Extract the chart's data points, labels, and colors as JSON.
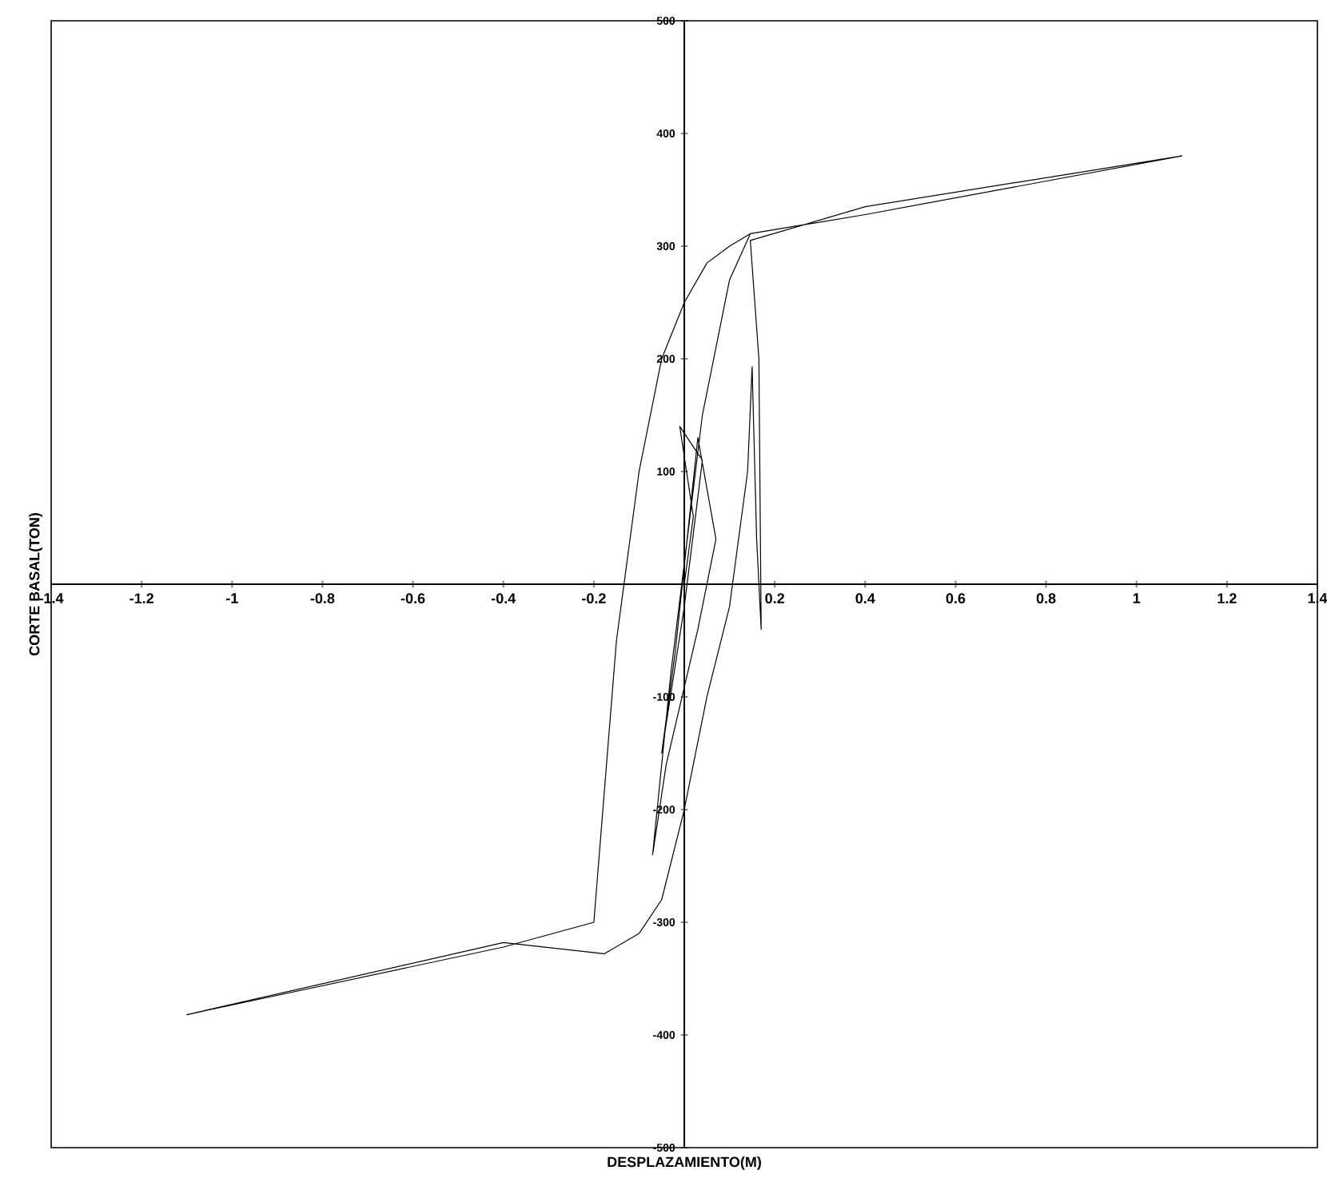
{
  "chart_data": {
    "type": "line",
    "xlabel": "DESPLAZAMIENTO(M)",
    "ylabel": "CORTE BASAL(TON)",
    "xlim": [
      -1.4,
      1.4
    ],
    "ylim": [
      -500,
      500
    ],
    "xticks": [
      -1.4,
      -1.2,
      -1,
      -0.8,
      -0.6,
      -0.4,
      -0.2,
      {
        "value": 0,
        "label": null
      },
      0.2,
      0.4,
      0.6,
      0.8,
      1,
      1.2,
      1.4
    ],
    "yticks": [
      -500,
      -400,
      -300,
      -200,
      -100,
      {
        "value": 0,
        "label": null
      },
      100,
      200,
      300,
      400,
      500
    ],
    "line_style": "solid",
    "series": [
      {
        "color": "#000000",
        "x": [
          0,
          0.02,
          -0.01,
          0.04,
          0.0,
          -0.05,
          -0.02,
          0.03,
          0.07,
          0.03,
          -0.04,
          -0.07,
          -0.03,
          0.04,
          0.1,
          0.146,
          0.4,
          1.1,
          0.4,
          0.146,
          0.165,
          0.17,
          0.16,
          0.15,
          0.14,
          0.1,
          0.05,
          0.0,
          -0.05,
          -0.1,
          -0.177,
          -0.4,
          -1.1,
          -0.4,
          -0.2,
          -0.19,
          -0.15,
          -0.1,
          -0.05,
          0.0,
          0.05,
          0.1,
          0.146
        ],
        "values": [
          0,
          60,
          140,
          110,
          -20,
          -150,
          -60,
          130,
          40,
          -40,
          -160,
          -240,
          -80,
          150,
          270,
          311,
          328,
          380,
          335,
          305,
          200,
          -40,
          40,
          193,
          100,
          -20,
          -100,
          -200,
          -280,
          -310,
          -328,
          -318,
          -382,
          -322,
          -300,
          -250,
          -50,
          100,
          200,
          250,
          285,
          300,
          311
        ]
      }
    ]
  }
}
